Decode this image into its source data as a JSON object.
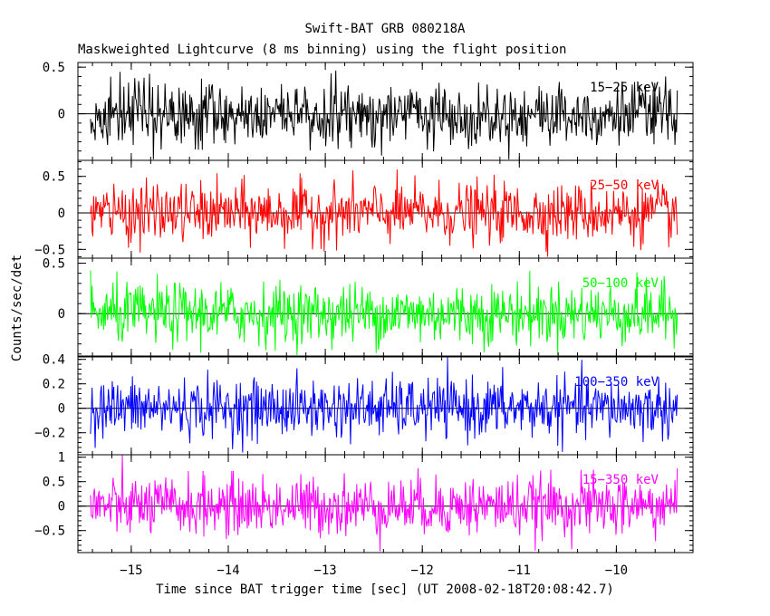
{
  "chart_data": {
    "type": "line",
    "title": "Swift-BAT GRB 080218A",
    "subtitle": "Maskweighted Lightcurve (8 ms binning) using the flight position",
    "xlabel": "Time since BAT trigger time [sec] (UT 2008-02-18T20:08:42.7)",
    "ylabel": "Counts/sec/det",
    "xlim": [
      -15.55,
      -9.21
    ],
    "xticks": [
      -15,
      -14,
      -13,
      -12,
      -11,
      -10
    ],
    "xtick_labels": [
      "−15",
      "−14",
      "−13",
      "−12",
      "−11",
      "−10"
    ],
    "x_start": -15.42,
    "x_end": -9.37,
    "bin_width": 0.008,
    "grid": false,
    "panels": [
      {
        "name": "15−25 keV",
        "color": "#000000",
        "ylim": [
          -0.5,
          0.55
        ],
        "yticks": [
          0.5,
          0
        ],
        "ytick_labels": [
          "0.5",
          "0"
        ],
        "noise_amplitude": 0.17,
        "peak": 0.5
      },
      {
        "name": "25−50 keV",
        "color": "#ff0000",
        "ylim": [
          -0.62,
          0.72
        ],
        "yticks": [
          0.5,
          0,
          -0.5
        ],
        "ytick_labels": [
          "0.5",
          "0",
          "−0.5"
        ],
        "noise_amplitude": 0.2,
        "peak": 0.65
      },
      {
        "name": "50−100 keV",
        "color": "#00ff00",
        "ylim": [
          -0.42,
          0.55
        ],
        "yticks": [
          0.5,
          0
        ],
        "ytick_labels": [
          "0.5",
          "0"
        ],
        "noise_amplitude": 0.15,
        "peak": 0.5
      },
      {
        "name": "100−350 keV",
        "color": "#0000ff",
        "ylim": [
          -0.38,
          0.42
        ],
        "yticks": [
          0.4,
          0.2,
          0,
          -0.2
        ],
        "ytick_labels": [
          "0.4",
          "0.2",
          "0",
          "−0.2"
        ],
        "noise_amplitude": 0.12,
        "peak": 0.38
      },
      {
        "name": "15−350 keV",
        "color": "#ff00ff",
        "ylim": [
          -0.95,
          1.05
        ],
        "yticks": [
          1,
          0.5,
          0,
          -0.5
        ],
        "ytick_labels": [
          "1",
          "0.5",
          "0",
          "−0.5"
        ],
        "noise_amplitude": 0.3,
        "peak": 1.0
      }
    ]
  }
}
